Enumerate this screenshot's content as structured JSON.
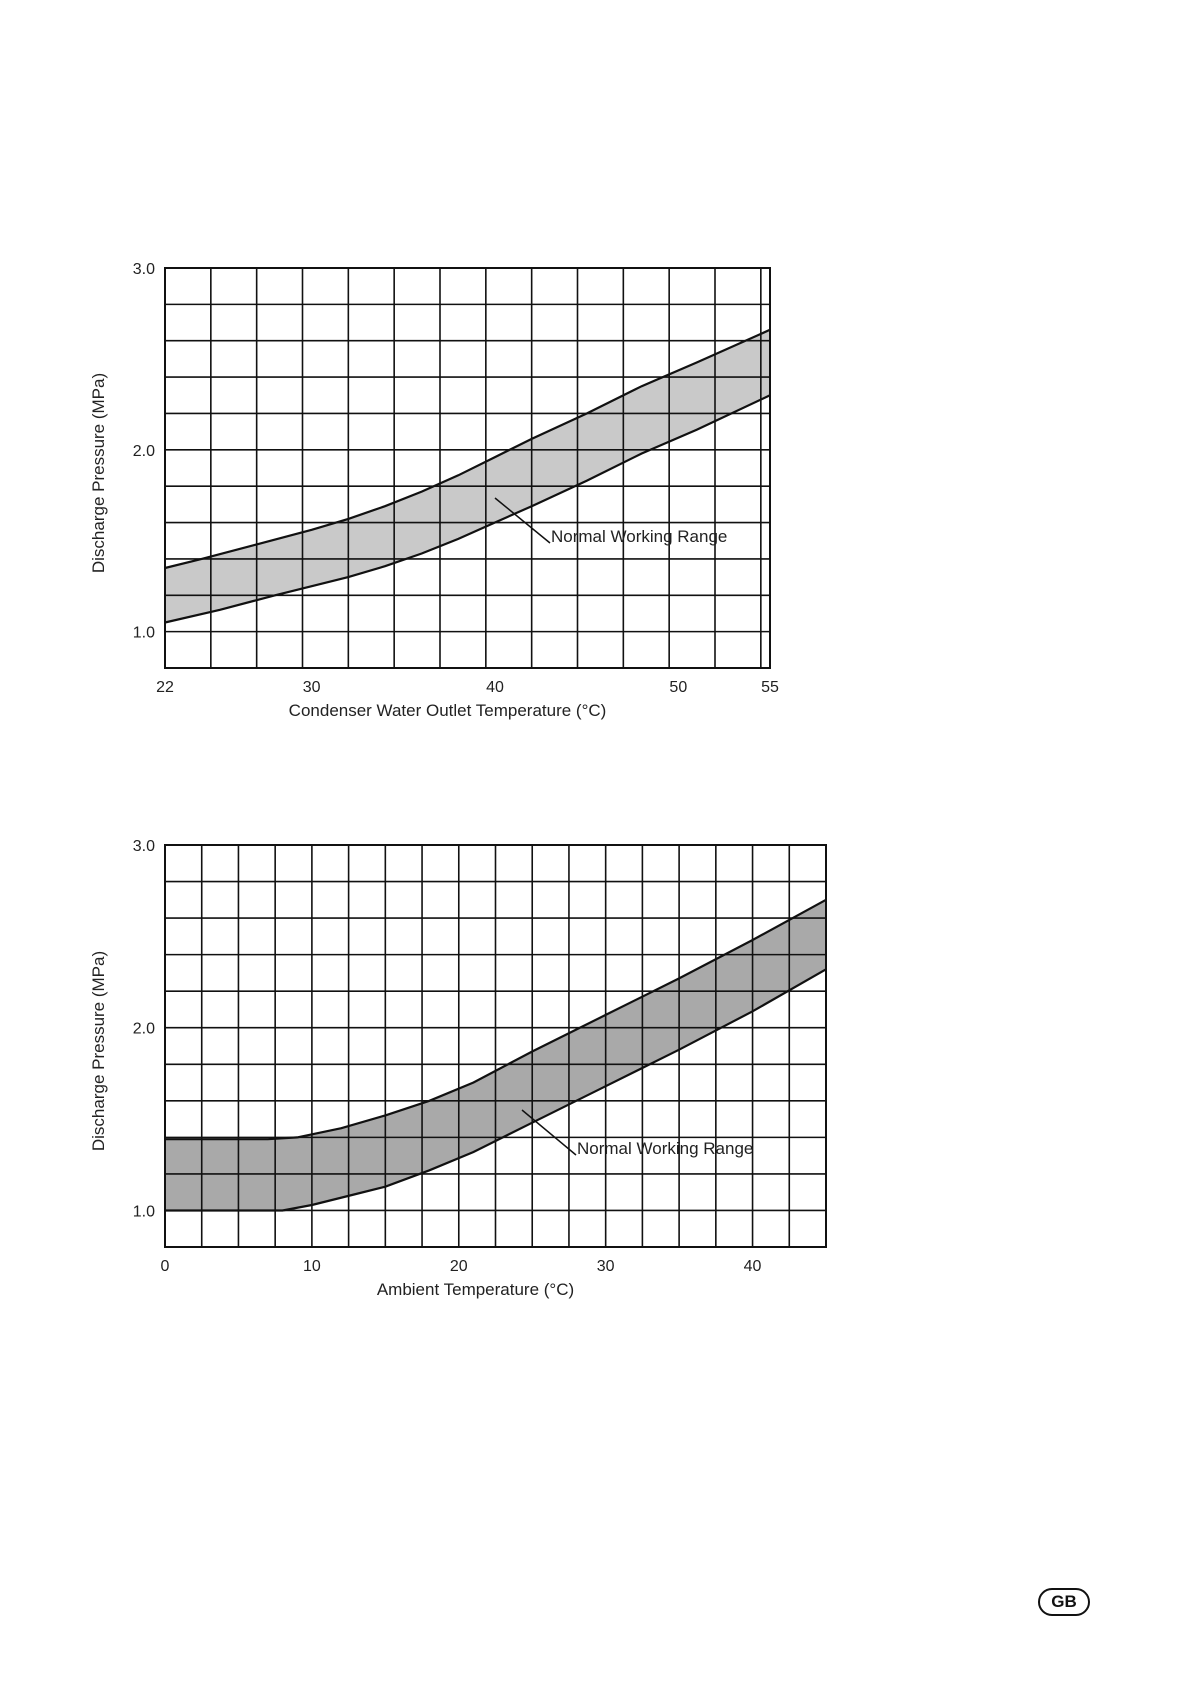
{
  "page_badge": "GB",
  "chart_data": [
    {
      "type": "area",
      "xlabel": "Condenser Water Outlet Temperature (°C)",
      "ylabel": "Discharge Pressure (MPa)",
      "xlim": [
        22,
        55
      ],
      "ylim": [
        0.8,
        3.0
      ],
      "x_ticks": [
        22,
        30,
        40,
        50,
        55
      ],
      "x_tick_labels": [
        "22",
        "30",
        "40",
        "50",
        "55"
      ],
      "y_ticks": [
        1.0,
        2.0,
        3.0
      ],
      "y_tick_labels": [
        "1.0",
        "2.0",
        "3.0"
      ],
      "grid": true,
      "band_color": "#c9c9c9",
      "annotation": "Normal Working Range",
      "series": [
        {
          "values": [
            [
              22,
              1.35
            ],
            [
              24,
              1.4
            ],
            [
              27,
              1.48
            ],
            [
              30,
              1.56
            ],
            [
              32,
              1.62
            ],
            [
              34,
              1.69
            ],
            [
              36,
              1.77
            ],
            [
              38,
              1.86
            ],
            [
              40,
              1.96
            ],
            [
              42,
              2.06
            ],
            [
              45,
              2.2
            ],
            [
              48,
              2.35
            ],
            [
              51,
              2.48
            ],
            [
              55,
              2.66
            ]
          ]
        },
        {
          "values": [
            [
              22,
              1.05
            ],
            [
              25,
              1.12
            ],
            [
              28,
              1.2
            ],
            [
              30,
              1.25
            ],
            [
              32,
              1.3
            ],
            [
              34,
              1.36
            ],
            [
              36,
              1.43
            ],
            [
              38,
              1.51
            ],
            [
              40,
              1.6
            ],
            [
              42,
              1.69
            ],
            [
              45,
              1.83
            ],
            [
              48,
              1.98
            ],
            [
              51,
              2.11
            ],
            [
              55,
              2.3
            ]
          ]
        }
      ]
    },
    {
      "type": "area",
      "xlabel": "Ambient Temperature (°C)",
      "ylabel": "Discharge Pressure (MPa)",
      "xlim": [
        0,
        45
      ],
      "ylim": [
        0.8,
        3.0
      ],
      "x_ticks": [
        0,
        10,
        20,
        30,
        40
      ],
      "x_tick_labels": [
        "0",
        "10",
        "20",
        "30",
        "40"
      ],
      "y_ticks": [
        1.0,
        2.0,
        3.0
      ],
      "y_tick_labels": [
        "1.0",
        "2.0",
        "3.0"
      ],
      "grid": true,
      "band_color": "#a9a9a9",
      "annotation": "Normal Working Range",
      "series": [
        {
          "values": [
            [
              0,
              1.39
            ],
            [
              7,
              1.39
            ],
            [
              9,
              1.4
            ],
            [
              12,
              1.45
            ],
            [
              15,
              1.52
            ],
            [
              18,
              1.6
            ],
            [
              21,
              1.7
            ],
            [
              25,
              1.87
            ],
            [
              30,
              2.07
            ],
            [
              35,
              2.27
            ],
            [
              40,
              2.48
            ],
            [
              45,
              2.7
            ]
          ]
        },
        {
          "values": [
            [
              0,
              1.0
            ],
            [
              8,
              1.0
            ],
            [
              10,
              1.03
            ],
            [
              13,
              1.09
            ],
            [
              15,
              1.13
            ],
            [
              18,
              1.22
            ],
            [
              21,
              1.32
            ],
            [
              25,
              1.48
            ],
            [
              30,
              1.68
            ],
            [
              35,
              1.88
            ],
            [
              40,
              2.09
            ],
            [
              45,
              2.32
            ]
          ]
        }
      ]
    }
  ]
}
